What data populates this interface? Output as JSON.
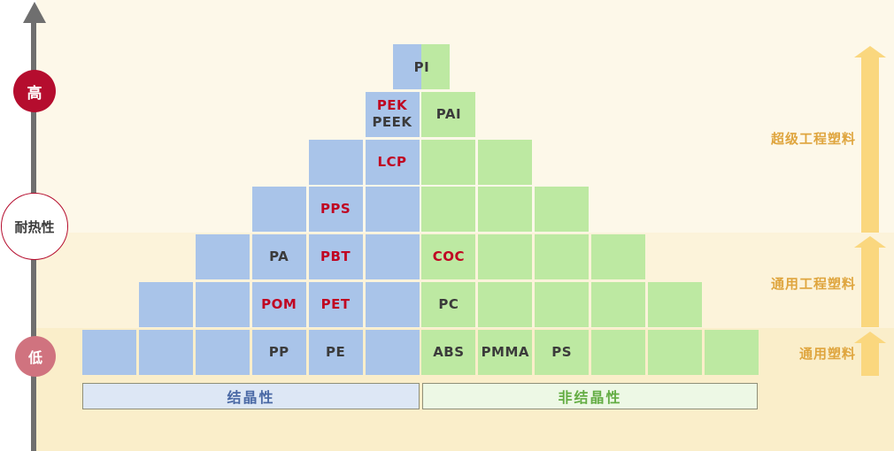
{
  "axis": {
    "title": "耐热性",
    "high": "高",
    "low": "低"
  },
  "tiers": [
    {
      "id": "super-engineering",
      "label": "超级工程塑料"
    },
    {
      "id": "general-engineering",
      "label": "通用工程塑料"
    },
    {
      "id": "general",
      "label": "通用塑料"
    }
  ],
  "category_bars": {
    "crystalline": "结晶性",
    "amorphous": "非结晶性"
  },
  "colors": {
    "blue_block": "#a9c4e9",
    "green_block": "#bde9a2",
    "red_label": "#c00522",
    "dark_label": "#3b3b3b",
    "band_super": "#fdf8e9",
    "band_engineering": "#fcf3da",
    "band_general": "#faeeca",
    "axis_gray": "#6f6f6f",
    "arrow_orange": "#fad77e",
    "tier_label": "#dfa53e",
    "high_circle": "#b50d2e",
    "low_circle": "#d0737f",
    "crystalline_bar_bg": "#dde7f5",
    "crystalline_bar_text": "#4a69a5",
    "amorphous_bar_bg": "#edf8e5",
    "amorphous_bar_text": "#64ad44"
  },
  "chart_data": {
    "type": "pyramid-matrix",
    "y_axis": {
      "label": "耐热性",
      "top": "高",
      "bottom": "低"
    },
    "left_group": {
      "label": "结晶性",
      "color": "blue"
    },
    "right_group": {
      "label": "非结晶性",
      "color": "green"
    },
    "tier_rows": {
      "超级工程塑料": [
        0,
        1,
        2,
        3
      ],
      "通用工程塑料": [
        4,
        5
      ],
      "通用塑料": [
        6
      ]
    },
    "rows": [
      {
        "cells": [
          {
            "c": 5.5,
            "type": "blue",
            "half": true
          },
          {
            "c": 6,
            "type": "green",
            "half": true
          }
        ],
        "overlay": {
          "text": "PI",
          "color": "dark"
        }
      },
      {
        "cells": [
          {
            "c": 5,
            "type": "blue",
            "lines": [
              [
                "PEK",
                "red"
              ],
              [
                "PEEK",
                "dark"
              ]
            ]
          },
          {
            "c": 6,
            "type": "green",
            "lines": [
              [
                "PAI",
                "dark"
              ]
            ]
          }
        ]
      },
      {
        "cells": [
          {
            "c": 4,
            "type": "blue"
          },
          {
            "c": 5,
            "type": "blue",
            "lines": [
              [
                "LCP",
                "red"
              ]
            ]
          },
          {
            "c": 6,
            "type": "green"
          },
          {
            "c": 7,
            "type": "green"
          }
        ]
      },
      {
        "cells": [
          {
            "c": 3,
            "type": "blue"
          },
          {
            "c": 4,
            "type": "blue",
            "lines": [
              [
                "PPS",
                "red"
              ]
            ]
          },
          {
            "c": 5,
            "type": "blue"
          },
          {
            "c": 6,
            "type": "green"
          },
          {
            "c": 7,
            "type": "green"
          },
          {
            "c": 8,
            "type": "green"
          }
        ]
      },
      {
        "cells": [
          {
            "c": 2,
            "type": "blue"
          },
          {
            "c": 3,
            "type": "blue",
            "lines": [
              [
                "PA",
                "dark"
              ]
            ]
          },
          {
            "c": 4,
            "type": "blue",
            "lines": [
              [
                "PBT",
                "red"
              ]
            ]
          },
          {
            "c": 5,
            "type": "blue"
          },
          {
            "c": 6,
            "type": "green",
            "lines": [
              [
                "COC",
                "red"
              ]
            ]
          },
          {
            "c": 7,
            "type": "green"
          },
          {
            "c": 8,
            "type": "green"
          },
          {
            "c": 9,
            "type": "green"
          }
        ]
      },
      {
        "cells": [
          {
            "c": 1,
            "type": "blue"
          },
          {
            "c": 2,
            "type": "blue"
          },
          {
            "c": 3,
            "type": "blue",
            "lines": [
              [
                "POM",
                "red"
              ]
            ]
          },
          {
            "c": 4,
            "type": "blue",
            "lines": [
              [
                "PET",
                "red"
              ]
            ]
          },
          {
            "c": 5,
            "type": "blue"
          },
          {
            "c": 6,
            "type": "green",
            "lines": [
              [
                "PC",
                "dark"
              ]
            ]
          },
          {
            "c": 7,
            "type": "green"
          },
          {
            "c": 8,
            "type": "green"
          },
          {
            "c": 9,
            "type": "green"
          },
          {
            "c": 10,
            "type": "green"
          }
        ]
      },
      {
        "cells": [
          {
            "c": 0,
            "type": "blue"
          },
          {
            "c": 1,
            "type": "blue"
          },
          {
            "c": 2,
            "type": "blue"
          },
          {
            "c": 3,
            "type": "blue",
            "lines": [
              [
                "PP",
                "dark"
              ]
            ]
          },
          {
            "c": 4,
            "type": "blue",
            "lines": [
              [
                "PE",
                "dark"
              ]
            ]
          },
          {
            "c": 5,
            "type": "blue"
          },
          {
            "c": 6,
            "type": "green",
            "lines": [
              [
                "ABS",
                "dark"
              ]
            ]
          },
          {
            "c": 7,
            "type": "green",
            "lines": [
              [
                "PMMA",
                "dark"
              ]
            ]
          },
          {
            "c": 8,
            "type": "green",
            "lines": [
              [
                "PS",
                "dark"
              ]
            ]
          },
          {
            "c": 9,
            "type": "green"
          },
          {
            "c": 10,
            "type": "green"
          },
          {
            "c": 11,
            "type": "green"
          }
        ]
      }
    ]
  }
}
